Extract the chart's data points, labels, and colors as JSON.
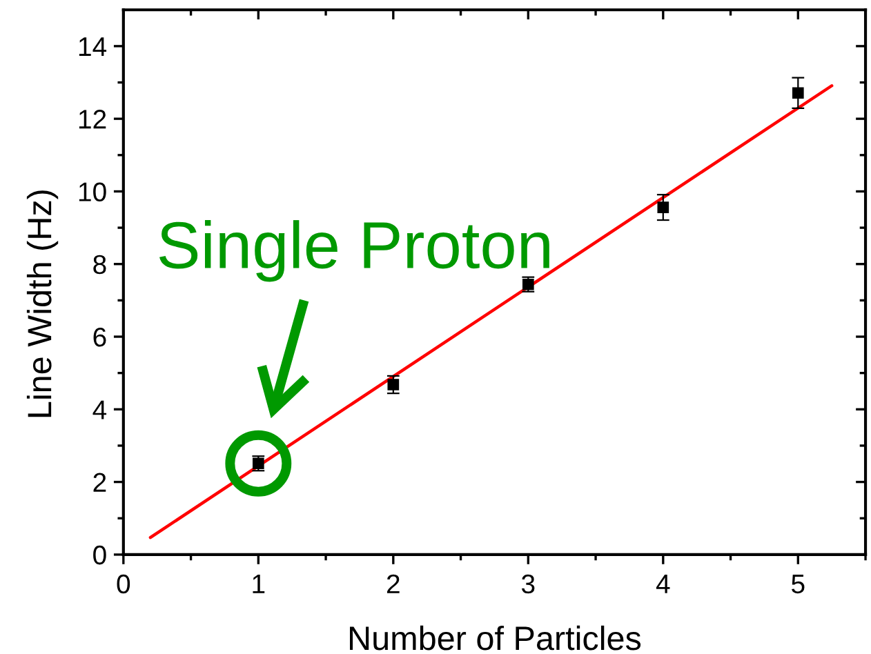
{
  "chart_data": {
    "type": "scatter",
    "xlabel": "Number of Particles",
    "ylabel": "Line Width (Hz)",
    "xlim": [
      0,
      5.5
    ],
    "ylim": [
      0,
      15
    ],
    "xticks": [
      0,
      {
        "value": 0.5,
        "label": null
      },
      1,
      {
        "value": 1.5,
        "label": null
      },
      2,
      {
        "value": 2.5,
        "label": null
      },
      3,
      {
        "value": 3.5,
        "label": null
      },
      4,
      {
        "value": 4.5,
        "label": null
      },
      5,
      {
        "value": 5.5,
        "label": null
      }
    ],
    "yticks": [
      0,
      {
        "value": 1,
        "label": null
      },
      2,
      {
        "value": 3,
        "label": null
      },
      4,
      {
        "value": 5,
        "label": null
      },
      6,
      {
        "value": 7,
        "label": null
      },
      8,
      {
        "value": 9,
        "label": null
      },
      10,
      {
        "value": 11,
        "label": null
      },
      12,
      {
        "value": 13,
        "label": null
      },
      14
    ],
    "series": [
      {
        "color": "#000000",
        "marker": "square",
        "x": [
          1,
          2,
          3,
          4,
          5
        ],
        "values": [
          2.51,
          4.68,
          7.44,
          9.56,
          12.71
        ],
        "errors": [
          0.2,
          0.24,
          0.2,
          0.35,
          0.42
        ]
      },
      {
        "type": "line",
        "color": "#ff0000",
        "marker": "none",
        "line_style": "solid",
        "x": [
          0.2,
          5.25
        ],
        "values": [
          0.47,
          12.91
        ]
      }
    ],
    "annotations": [
      {
        "text": "Single Proton",
        "x": 1,
        "y": 2.51
      }
    ]
  }
}
